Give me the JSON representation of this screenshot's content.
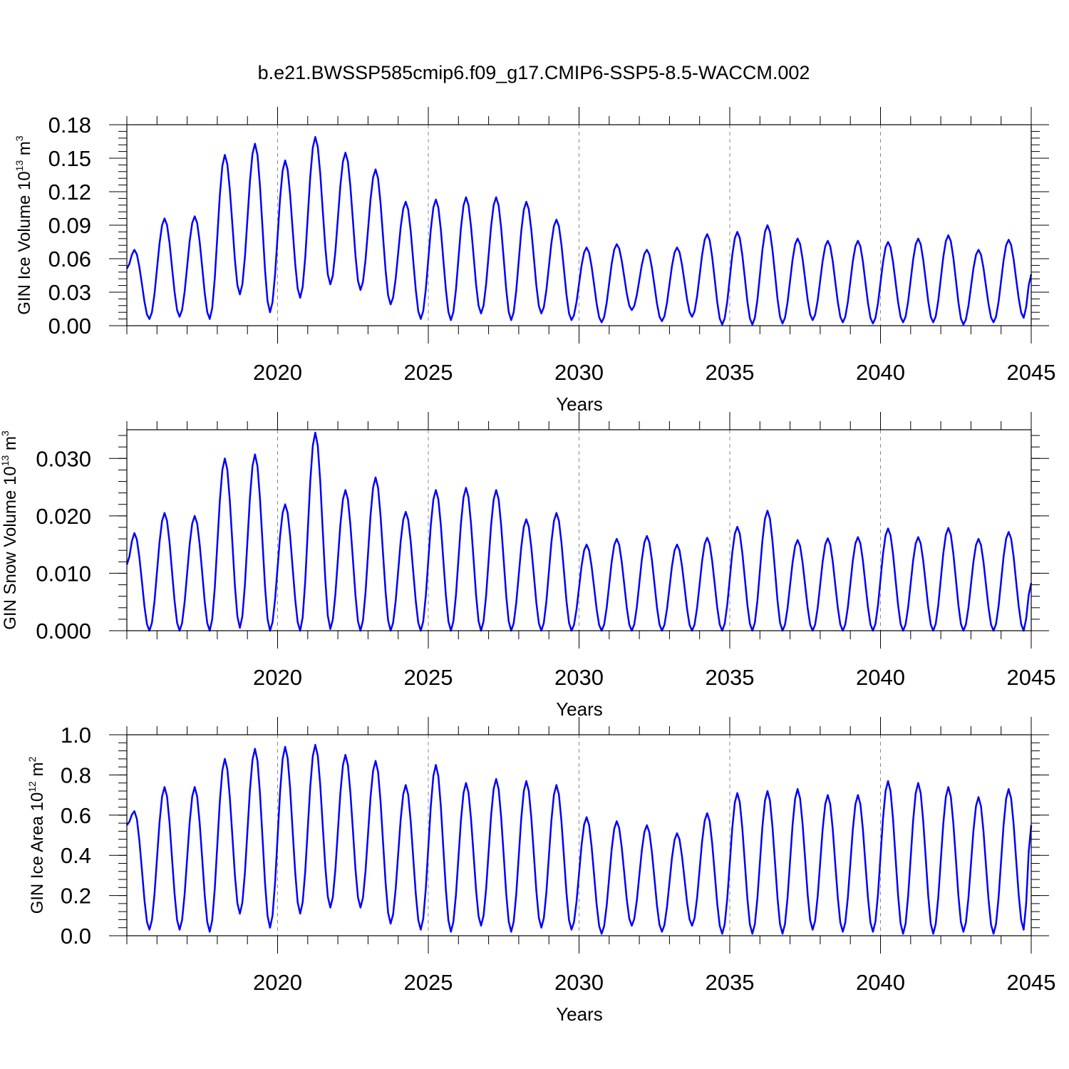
{
  "chart_data": [
    {
      "type": "line",
      "title": "b.e21.BWSSP585cmip6.f09_g17.CMIP6-SSP5-8.5-WACCM.002",
      "xlabel": "Years",
      "ylabel": {
        "text": "GIN Ice Volume 10",
        "exp": "13",
        "unit": " m",
        "unit_exp": "3"
      },
      "xlim": [
        2015.0,
        2045.0
      ],
      "ylim": [
        0.0,
        0.18
      ],
      "x_ticks": [
        "2020",
        "2025",
        "2030",
        "2035",
        "2040",
        "2045"
      ],
      "x_tick_values": [
        2020,
        2025,
        2030,
        2035,
        2040,
        2045
      ],
      "y_ticks": [
        "0.00",
        "0.03",
        "0.06",
        "0.09",
        "0.12",
        "0.15",
        "0.18"
      ],
      "y_tick_values": [
        0.0,
        0.03,
        0.06,
        0.09,
        0.12,
        0.15,
        0.18
      ],
      "grid": "vertical dashed at x ticks",
      "line_color": "#0000ff",
      "series": [
        {
          "name": "GIN Ice Volume",
          "annual_peaks": [
            0.068,
            0.096,
            0.098,
            0.153,
            0.163,
            0.148,
            0.169,
            0.155,
            0.14,
            0.111,
            0.113,
            0.115,
            0.115,
            0.111,
            0.095,
            0.07,
            0.073,
            0.068,
            0.07,
            0.082,
            0.084,
            0.09,
            0.078,
            0.076,
            0.076,
            0.075,
            0.078,
            0.081,
            0.068,
            0.077
          ],
          "annual_minima": [
            0.006,
            0.008,
            0.006,
            0.028,
            0.012,
            0.025,
            0.037,
            0.032,
            0.019,
            0.006,
            0.005,
            0.011,
            0.005,
            0.011,
            0.005,
            0.003,
            0.014,
            0.004,
            0.008,
            0.001,
            0.001,
            0.002,
            0.005,
            0.003,
            0.002,
            0.003,
            0.003,
            0.001,
            0.003,
            0.007
          ],
          "start_value": 0.051,
          "end_value": 0.046
        }
      ]
    },
    {
      "type": "line",
      "xlabel": "Years",
      "ylabel": {
        "text": "GIN Snow Volume 10",
        "exp": "13",
        "unit": " m",
        "unit_exp": "3"
      },
      "xlim": [
        2015.0,
        2045.0
      ],
      "ylim": [
        0.0,
        0.035
      ],
      "x_ticks": [
        "2020",
        "2025",
        "2030",
        "2035",
        "2040",
        "2045"
      ],
      "x_tick_values": [
        2020,
        2025,
        2030,
        2035,
        2040,
        2045
      ],
      "y_ticks": [
        "0.000",
        "0.010",
        "0.020",
        "0.030"
      ],
      "y_tick_values": [
        0.0,
        0.01,
        0.02,
        0.03
      ],
      "grid": "vertical dashed at x ticks",
      "line_color": "#0000ff",
      "series": [
        {
          "name": "GIN Snow Volume",
          "annual_peaks": [
            0.017,
            0.0205,
            0.02,
            0.03,
            0.0307,
            0.022,
            0.0345,
            0.0245,
            0.0267,
            0.0207,
            0.0245,
            0.0249,
            0.0245,
            0.0194,
            0.0205,
            0.015,
            0.016,
            0.0165,
            0.015,
            0.0162,
            0.0181,
            0.0209,
            0.0158,
            0.0161,
            0.0163,
            0.0178,
            0.0163,
            0.0179,
            0.016,
            0.0172
          ],
          "annual_minima": [
            0.0,
            0.0,
            0.0,
            0.0005,
            0.0,
            0.0,
            0.0003,
            0.0,
            0.0,
            0.0,
            0.0,
            0.0,
            0.0,
            0.0,
            0.0,
            0.0,
            0.0,
            0.0,
            0.0,
            0.0,
            0.0,
            0.0,
            0.0,
            0.0,
            0.0,
            0.0,
            0.0,
            0.0,
            0.0,
            0.0
          ],
          "start_value": 0.0115,
          "end_value": 0.0083
        }
      ]
    },
    {
      "type": "line",
      "xlabel": "Years",
      "ylabel": {
        "text": "GIN Ice Area 10",
        "exp": "12",
        "unit": " m",
        "unit_exp": "2"
      },
      "xlim": [
        2015.0,
        2045.0
      ],
      "ylim": [
        0.0,
        1.0
      ],
      "x_ticks": [
        "2020",
        "2025",
        "2030",
        "2035",
        "2040",
        "2045"
      ],
      "x_tick_values": [
        2020,
        2025,
        2030,
        2035,
        2040,
        2045
      ],
      "y_ticks": [
        "0.0",
        "0.2",
        "0.4",
        "0.6",
        "0.8",
        "1.0"
      ],
      "y_tick_values": [
        0.0,
        0.2,
        0.4,
        0.6,
        0.8,
        1.0
      ],
      "grid": "vertical dashed at x ticks",
      "line_color": "#0000ff",
      "series": [
        {
          "name": "GIN Ice Area",
          "annual_peaks": [
            0.62,
            0.74,
            0.74,
            0.88,
            0.93,
            0.94,
            0.95,
            0.9,
            0.87,
            0.75,
            0.85,
            0.76,
            0.78,
            0.77,
            0.75,
            0.59,
            0.57,
            0.55,
            0.51,
            0.61,
            0.71,
            0.72,
            0.73,
            0.7,
            0.7,
            0.77,
            0.76,
            0.74,
            0.69,
            0.73
          ],
          "annual_minima": [
            0.03,
            0.03,
            0.02,
            0.11,
            0.04,
            0.11,
            0.14,
            0.14,
            0.06,
            0.03,
            0.02,
            0.05,
            0.02,
            0.04,
            0.03,
            0.01,
            0.05,
            0.02,
            0.05,
            0.01,
            0.01,
            0.01,
            0.03,
            0.02,
            0.02,
            0.01,
            0.01,
            0.02,
            0.01,
            0.03
          ],
          "start_value": 0.55,
          "end_value": 0.55
        }
      ]
    }
  ]
}
